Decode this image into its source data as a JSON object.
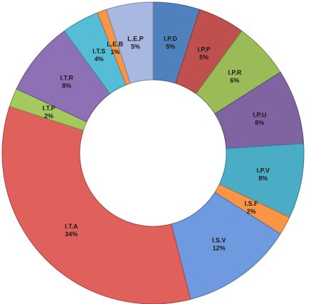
{
  "chart_data": {
    "type": "pie",
    "style": "donut",
    "title": "",
    "start_angle_deg": 0,
    "direction": "clockwise",
    "slices": [
      {
        "label": "I.P.D",
        "value": 5,
        "pct_label": "5%",
        "color": "#4F81BD"
      },
      {
        "label": "I.P.P",
        "value": 5,
        "pct_label": "5%",
        "color": "#C0504D"
      },
      {
        "label": "I.P.R",
        "value": 6,
        "pct_label": "6%",
        "color": "#9BBB59"
      },
      {
        "label": "I.P.U",
        "value": 8,
        "pct_label": "8%",
        "color": "#8064A2"
      },
      {
        "label": "I.P.V",
        "value": 8,
        "pct_label": "8%",
        "color": "#4BACC6"
      },
      {
        "label": "I.S.F",
        "value": 2,
        "pct_label": "2%",
        "color": "#F79646"
      },
      {
        "label": "I.S.V",
        "value": 12,
        "pct_label": "12%",
        "color": "#6F9AE0"
      },
      {
        "label": "I.T.A",
        "value": 34,
        "pct_label": "34%",
        "color": "#E0615C"
      },
      {
        "label": "I.T.P",
        "value": 2,
        "pct_label": "2%",
        "color": "#A4C95F"
      },
      {
        "label": "I.T.R",
        "value": 8,
        "pct_label": "8%",
        "color": "#8E70B5"
      },
      {
        "label": "I.T.S",
        "value": 4,
        "pct_label": "4%",
        "color": "#55BDD6"
      },
      {
        "label": "L.E.B",
        "value": 1,
        "pct_label": "1%",
        "color": "#F79646"
      },
      {
        "label": "L.E.P",
        "value": 5,
        "pct_label": "5%",
        "color": "#A9B8E0"
      }
    ]
  }
}
